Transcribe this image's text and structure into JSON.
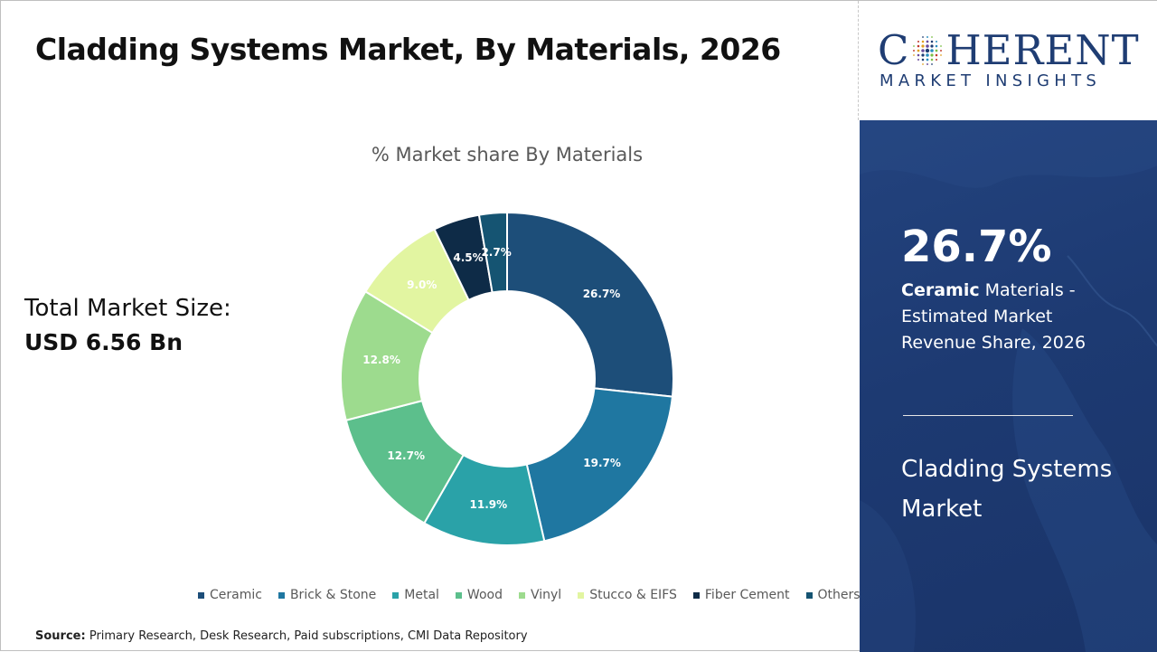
{
  "header": {
    "title": "Cladding Systems Market, By Materials, 2026"
  },
  "summary": {
    "label": "Total Market Size:",
    "value": "USD 6.56 Bn"
  },
  "source": {
    "label": "Source:",
    "text": "Primary Research, Desk Research, Paid subscriptions, CMI Data Repository"
  },
  "logo": {
    "main_left": "C",
    "main_right": "HERENT",
    "sub": "MARKET INSIGHTS"
  },
  "panel": {
    "kpi_value": "26.7%",
    "kpi_bold": "Ceramic",
    "kpi_rest": " Materials - Estimated Market Revenue Share, 2026",
    "market_name": "Cladding Systems Market"
  },
  "chart_data": {
    "type": "pie",
    "variant": "donut",
    "title": "% Market share By Materials",
    "legend_position": "bottom",
    "categories": [
      "Ceramic",
      "Brick & Stone",
      "Metal",
      "Wood",
      "Vinyl",
      "Stucco & EIFS",
      "Fiber Cement",
      "Others"
    ],
    "values": [
      26.7,
      19.7,
      11.9,
      12.7,
      12.8,
      9.0,
      4.5,
      2.7
    ],
    "labels": [
      "26.7%",
      "19.7%",
      "11.9%",
      "12.7%",
      "12.8%",
      "9.0%",
      "4.5%",
      "2.7%"
    ],
    "colors": [
      "#1d4e79",
      "#1f77a1",
      "#2aa2a8",
      "#5cbf8c",
      "#9ddb8e",
      "#e2f5a1",
      "#0e2b47",
      "#155472"
    ]
  }
}
